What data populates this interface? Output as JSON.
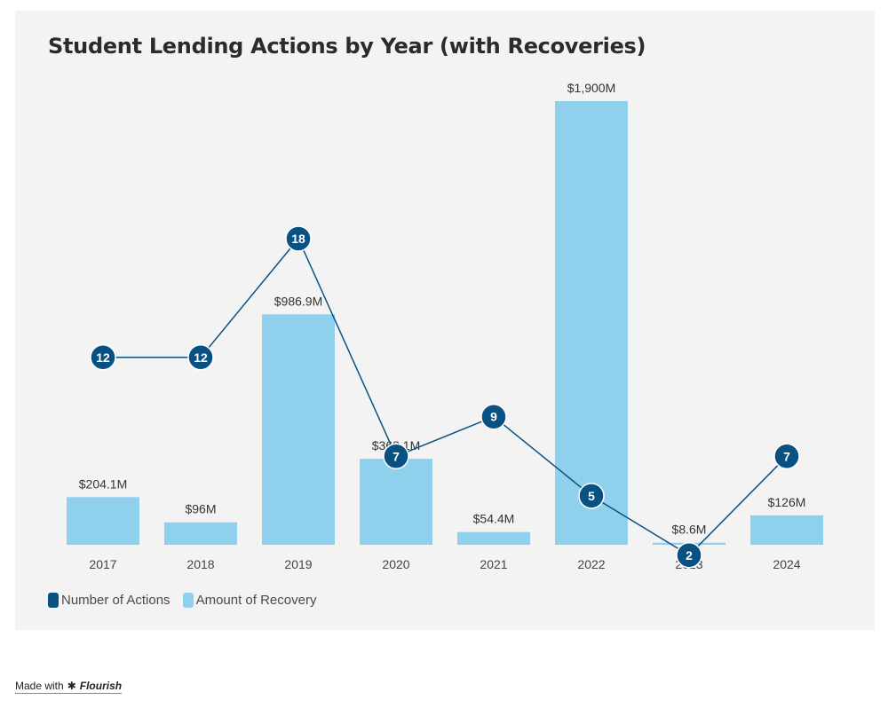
{
  "chart_data": {
    "type": "bar",
    "title": "Student Lending Actions by Year (with Recoveries)",
    "categories": [
      "2017",
      "2018",
      "2019",
      "2020",
      "2021",
      "2022",
      "2023",
      "2024"
    ],
    "series": [
      {
        "name": "Number of Actions",
        "type": "line",
        "values": [
          12,
          12,
          18,
          7,
          9,
          5,
          2,
          7
        ],
        "labels": [
          "12",
          "12",
          "18",
          "7",
          "9",
          "5",
          "2",
          "7"
        ],
        "color": "#0a5183"
      },
      {
        "name": "Amount of Recovery",
        "type": "bar",
        "values": [
          204.1,
          96,
          986.9,
          368.1,
          54.4,
          1900,
          8.6,
          126
        ],
        "labels": [
          "$204.1M",
          "$96M",
          "$986.9M",
          "$368.1M",
          "$54.4M",
          "$1,900M",
          "$8.6M",
          "$126M"
        ],
        "color": "#8fd0ec"
      }
    ],
    "ylim_bars": [
      0,
      1900
    ],
    "ylim_line": [
      0,
      18
    ],
    "grid": false,
    "legend_position": "bottom-left"
  },
  "credit": {
    "prefix": "Made with",
    "brand": "Flourish"
  }
}
